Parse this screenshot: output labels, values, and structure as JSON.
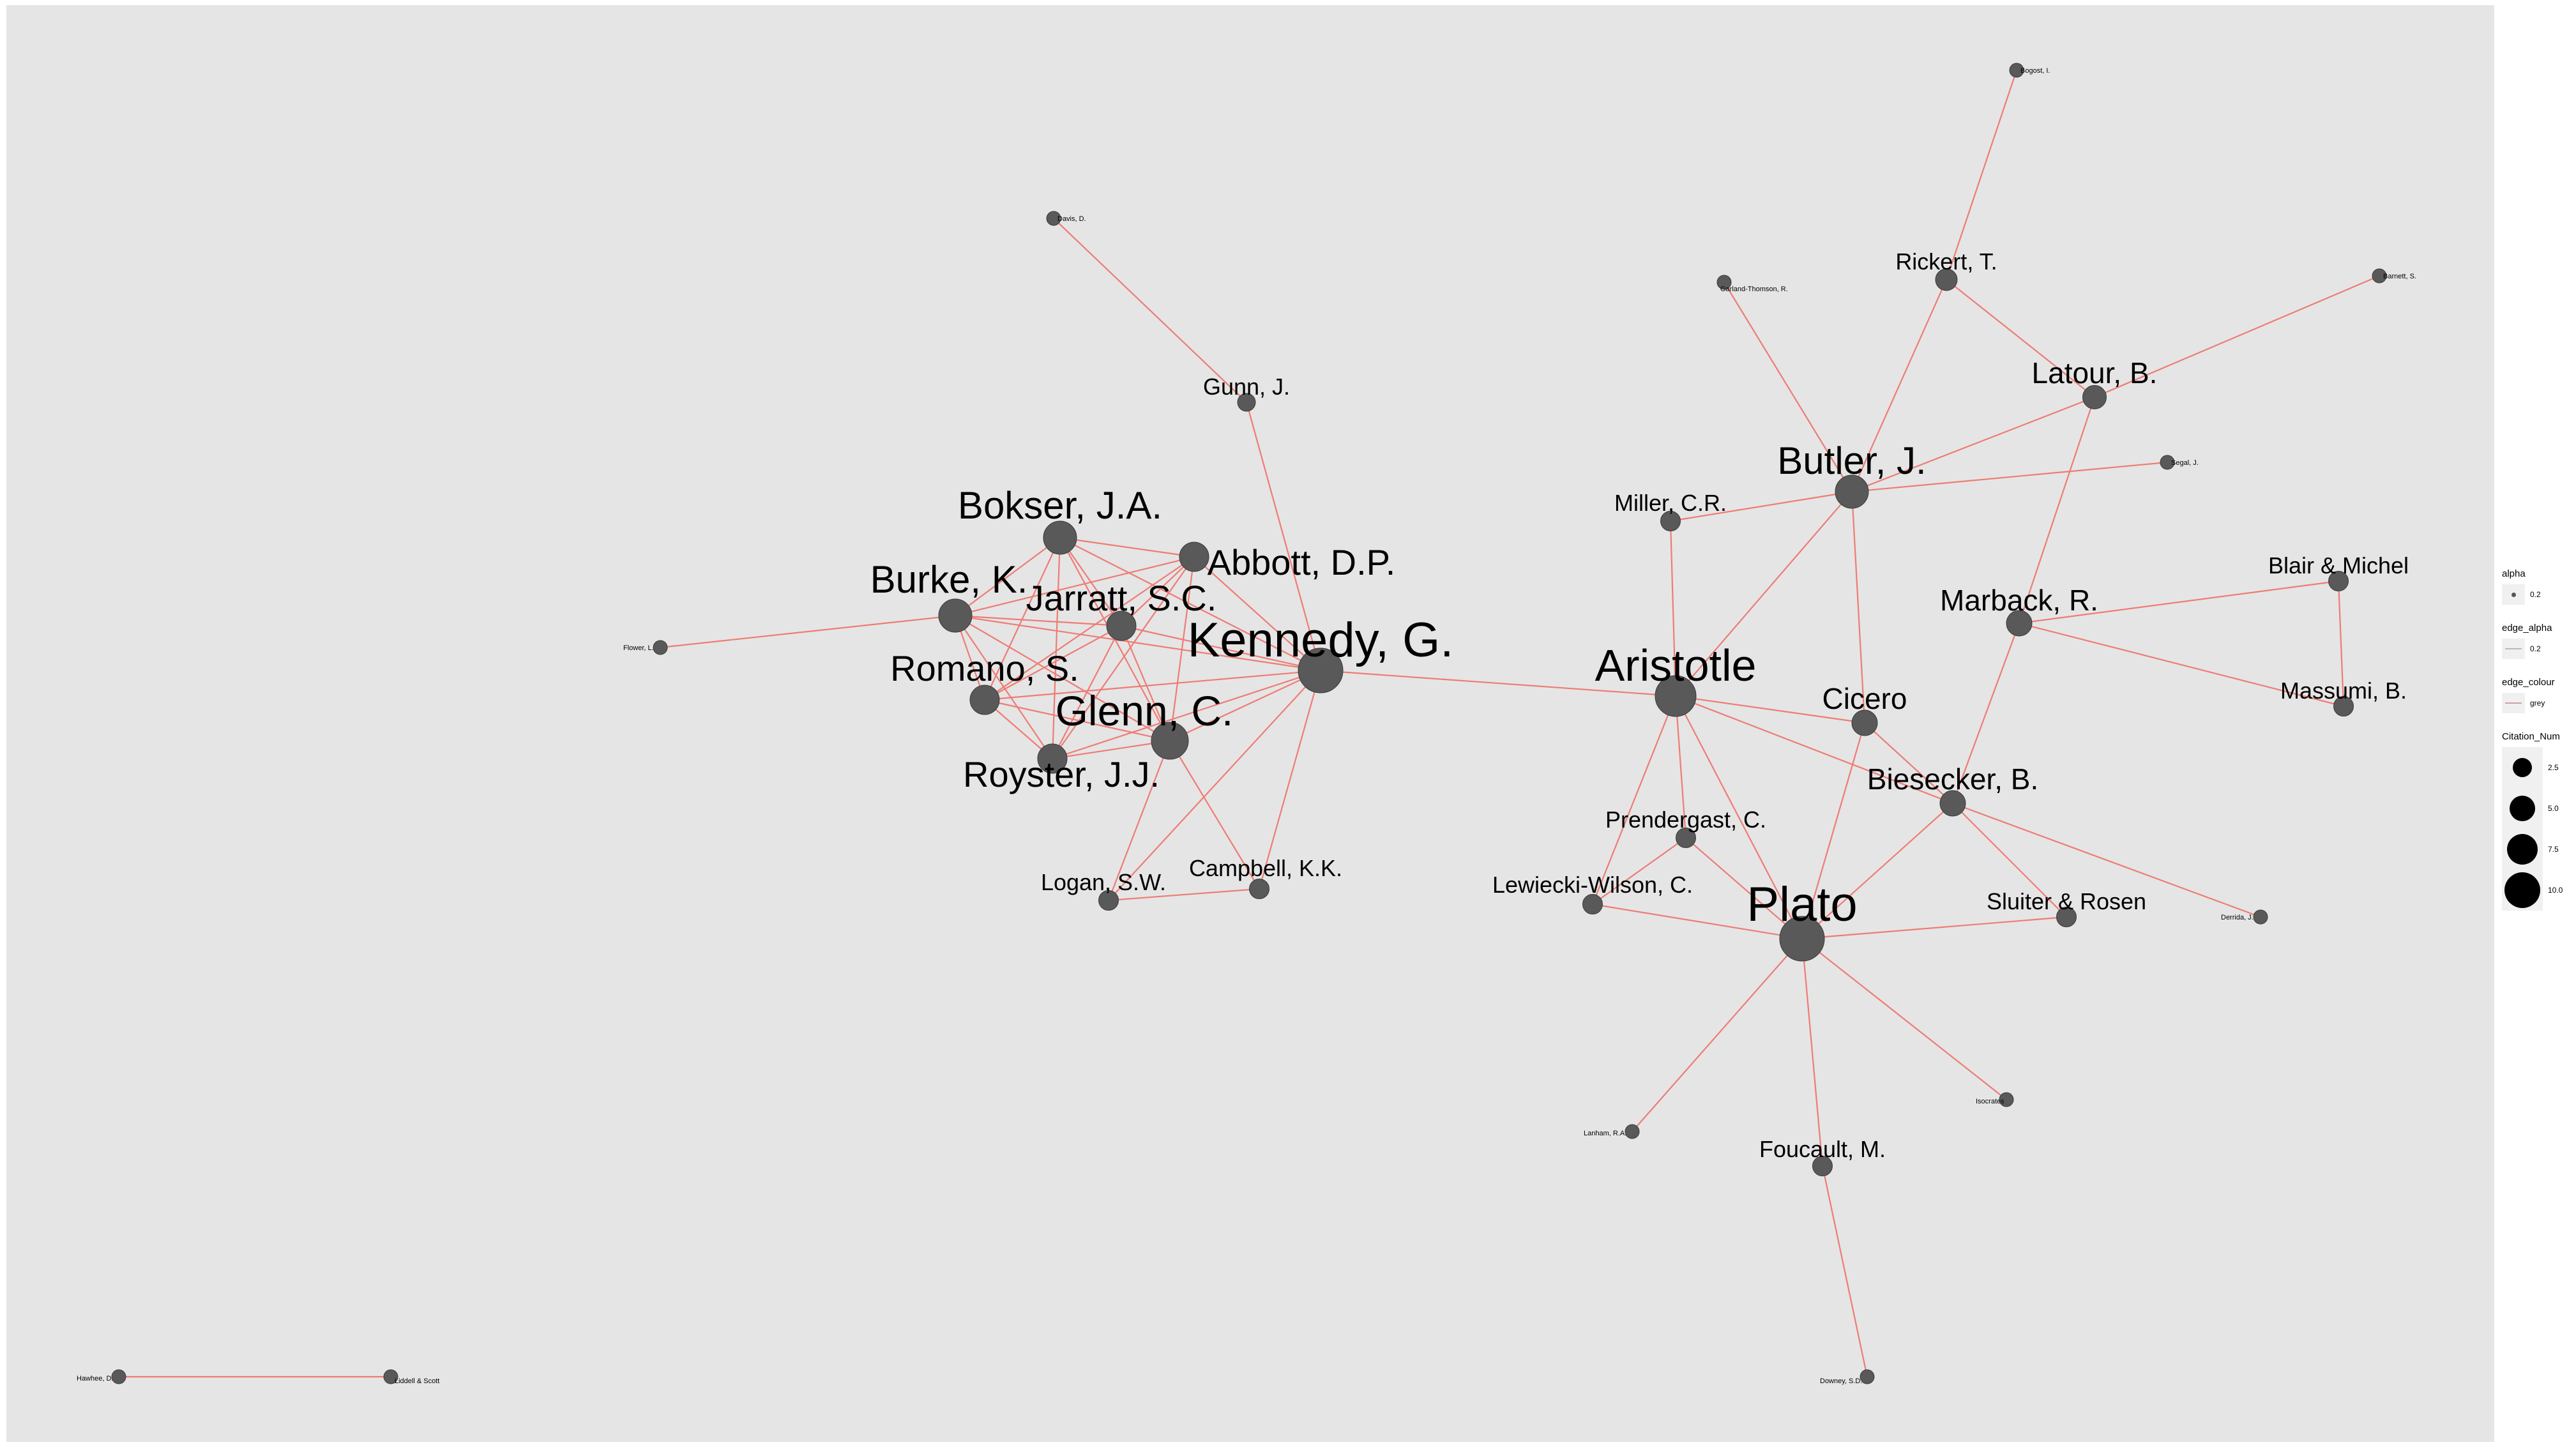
{
  "network": {
    "node_fill": "#595959",
    "edge_colour": "#ee7c75",
    "nodes": [
      {
        "id": "kennedy",
        "label": "Kennedy, G.",
        "citation_num": 9
      },
      {
        "id": "glenn",
        "label": "Glenn, C.",
        "citation_num": 7
      },
      {
        "id": "burke",
        "label": "Burke, K.",
        "citation_num": 6
      },
      {
        "id": "bokser",
        "label": "Bokser, J.A.",
        "citation_num": 6
      },
      {
        "id": "jarratt",
        "label": "Jarratt, S.C.",
        "citation_num": 5
      },
      {
        "id": "romano",
        "label": "Romano, S.",
        "citation_num": 5
      },
      {
        "id": "abbott",
        "label": "Abbott, D.P.",
        "citation_num": 5
      },
      {
        "id": "royster",
        "label": "Royster, J.J.",
        "citation_num": 5
      },
      {
        "id": "gunn",
        "label": "Gunn, J.",
        "citation_num": 2
      },
      {
        "id": "davis",
        "label": "Davis, D.",
        "citation_num": 1
      },
      {
        "id": "flower",
        "label": "Flower, L.",
        "citation_num": 1
      },
      {
        "id": "logan",
        "label": "Logan, S.W.",
        "citation_num": 2.5
      },
      {
        "id": "campbell",
        "label": "Campbell, K.K.",
        "citation_num": 2.5
      },
      {
        "id": "aristotle",
        "label": "Aristotle",
        "citation_num": 8
      },
      {
        "id": "plato",
        "label": "Plato",
        "citation_num": 9
      },
      {
        "id": "butler",
        "label": "Butler, J.",
        "citation_num": 6
      },
      {
        "id": "cicero",
        "label": "Cicero",
        "citation_num": 4
      },
      {
        "id": "biesecker",
        "label": "Biesecker, B.",
        "citation_num": 4
      },
      {
        "id": "marback",
        "label": "Marback, R.",
        "citation_num": 4
      },
      {
        "id": "latour",
        "label": "Latour, B.",
        "citation_num": 3.5
      },
      {
        "id": "rickert",
        "label": "Rickert, T.",
        "citation_num": 3
      },
      {
        "id": "miller",
        "label": "Miller, C.R.",
        "citation_num": 2.5
      },
      {
        "id": "prendergast",
        "label": "Prendergast, C.",
        "citation_num": 2.5
      },
      {
        "id": "lewiecki",
        "label": "Lewiecki-Wilson, C.",
        "citation_num": 2.5
      },
      {
        "id": "sluiter",
        "label": "Sluiter & Rosen",
        "citation_num": 2.5
      },
      {
        "id": "blair",
        "label": "Blair & Michel",
        "citation_num": 2.5
      },
      {
        "id": "massumi",
        "label": "Massumi, B.",
        "citation_num": 2.5
      },
      {
        "id": "foucault",
        "label": "Foucault, M.",
        "citation_num": 2.5
      },
      {
        "id": "bogost",
        "label": "Bogost, I.",
        "citation_num": 1
      },
      {
        "id": "barnett",
        "label": "Barnett, S.",
        "citation_num": 1
      },
      {
        "id": "garland",
        "label": "Garland-Thomson, R.",
        "citation_num": 1
      },
      {
        "id": "segal",
        "label": "Segal, J.",
        "citation_num": 1
      },
      {
        "id": "derrida",
        "label": "Derrida, J.",
        "citation_num": 1
      },
      {
        "id": "isocrates",
        "label": "Isocrates",
        "citation_num": 1
      },
      {
        "id": "lanham",
        "label": "Lanham, R.A.",
        "citation_num": 1
      },
      {
        "id": "downey",
        "label": "Downey, S.D.",
        "citation_num": 1
      },
      {
        "id": "hawhee",
        "label": "Hawhee, D.",
        "citation_num": 1
      },
      {
        "id": "liddell",
        "label": "Liddell & Scott",
        "citation_num": 1
      }
    ],
    "edges": [
      [
        "bokser",
        "abbott"
      ],
      [
        "bokser",
        "burke"
      ],
      [
        "bokser",
        "jarratt"
      ],
      [
        "bokser",
        "romano"
      ],
      [
        "bokser",
        "royster"
      ],
      [
        "bokser",
        "glenn"
      ],
      [
        "bokser",
        "kennedy"
      ],
      [
        "abbott",
        "burke"
      ],
      [
        "abbott",
        "jarratt"
      ],
      [
        "abbott",
        "romano"
      ],
      [
        "abbott",
        "royster"
      ],
      [
        "abbott",
        "glenn"
      ],
      [
        "abbott",
        "kennedy"
      ],
      [
        "burke",
        "jarratt"
      ],
      [
        "burke",
        "romano"
      ],
      [
        "burke",
        "royster"
      ],
      [
        "burke",
        "glenn"
      ],
      [
        "burke",
        "kennedy"
      ],
      [
        "burke",
        "flower"
      ],
      [
        "jarratt",
        "romano"
      ],
      [
        "jarratt",
        "royster"
      ],
      [
        "jarratt",
        "glenn"
      ],
      [
        "jarratt",
        "kennedy"
      ],
      [
        "romano",
        "royster"
      ],
      [
        "romano",
        "glenn"
      ],
      [
        "romano",
        "kennedy"
      ],
      [
        "royster",
        "glenn"
      ],
      [
        "royster",
        "kennedy"
      ],
      [
        "glenn",
        "kennedy"
      ],
      [
        "glenn",
        "logan"
      ],
      [
        "glenn",
        "campbell"
      ],
      [
        "kennedy",
        "gunn"
      ],
      [
        "kennedy",
        "logan"
      ],
      [
        "kennedy",
        "campbell"
      ],
      [
        "kennedy",
        "aristotle"
      ],
      [
        "gunn",
        "davis"
      ],
      [
        "logan",
        "campbell"
      ],
      [
        "aristotle",
        "butler"
      ],
      [
        "aristotle",
        "miller"
      ],
      [
        "aristotle",
        "cicero"
      ],
      [
        "aristotle",
        "biesecker"
      ],
      [
        "aristotle",
        "prendergast"
      ],
      [
        "aristotle",
        "lewiecki"
      ],
      [
        "aristotle",
        "plato"
      ],
      [
        "butler",
        "miller"
      ],
      [
        "butler",
        "latour"
      ],
      [
        "butler",
        "rickert"
      ],
      [
        "butler",
        "segal"
      ],
      [
        "butler",
        "cicero"
      ],
      [
        "butler",
        "garland"
      ],
      [
        "rickert",
        "latour"
      ],
      [
        "rickert",
        "bogost"
      ],
      [
        "latour",
        "barnett"
      ],
      [
        "latour",
        "marback"
      ],
      [
        "marback",
        "blair"
      ],
      [
        "marback",
        "massumi"
      ],
      [
        "marback",
        "biesecker"
      ],
      [
        "blair",
        "massumi"
      ],
      [
        "cicero",
        "plato"
      ],
      [
        "cicero",
        "biesecker"
      ],
      [
        "biesecker",
        "plato"
      ],
      [
        "biesecker",
        "derrida"
      ],
      [
        "biesecker",
        "sluiter"
      ],
      [
        "plato",
        "prendergast"
      ],
      [
        "plato",
        "lewiecki"
      ],
      [
        "plato",
        "sluiter"
      ],
      [
        "plato",
        "isocrates"
      ],
      [
        "plato",
        "lanham"
      ],
      [
        "plato",
        "foucault"
      ],
      [
        "prendergast",
        "lewiecki"
      ],
      [
        "foucault",
        "downey"
      ],
      [
        "hawhee",
        "liddell"
      ]
    ]
  },
  "legend": {
    "alpha": {
      "title": "alpha",
      "label": "0.2"
    },
    "edge_alpha": {
      "title": "edge_alpha",
      "label": "0.2"
    },
    "edge_colour": {
      "title": "edge_colour",
      "label": "grey"
    },
    "citation_num": {
      "title": "Citation_Num",
      "labels": [
        "2.5",
        "5.0",
        "7.5",
        "10.0"
      ]
    }
  }
}
